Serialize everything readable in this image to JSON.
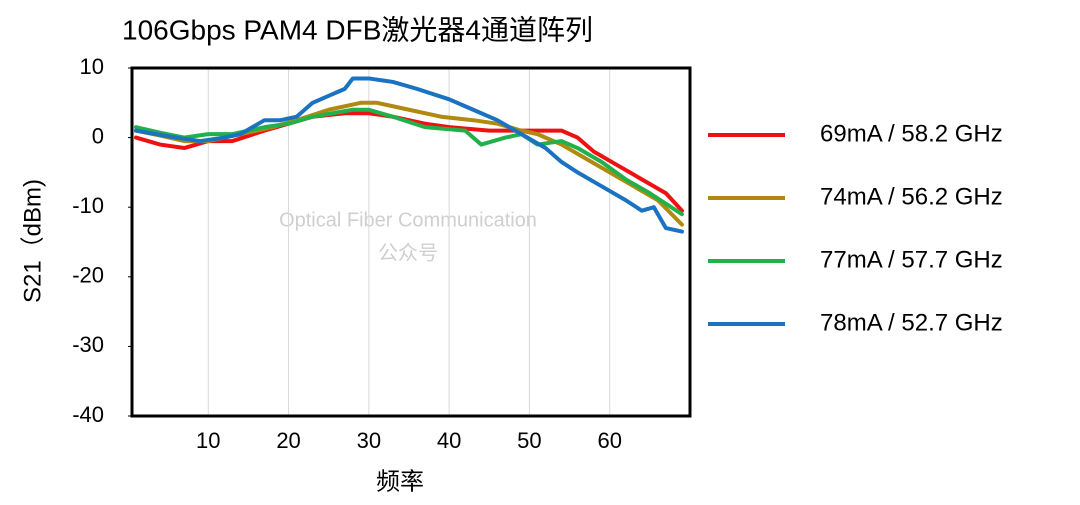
{
  "chart_data": {
    "type": "line",
    "title": "106Gbps PAM4 DFB激光器4通道阵列",
    "x_label": "频率",
    "y_label": "S21（dBm)",
    "annotations": [
      "Optical Fiber Communication",
      "公众号"
    ],
    "xlim": [
      0.5,
      70
    ],
    "xticks": [
      10,
      20,
      30,
      40,
      50,
      60
    ],
    "ylim": [
      -40,
      10
    ],
    "yticks": [
      -40,
      -30,
      -20,
      -10,
      0,
      10
    ],
    "grid": true,
    "series": [
      {
        "name": "69mA / 58.2 GHz",
        "color": "#ee1111",
        "x": [
          1,
          4,
          7,
          10,
          13,
          17,
          20,
          23,
          27,
          30,
          33,
          37,
          40,
          45,
          50,
          54,
          56,
          58,
          61,
          64,
          67,
          69
        ],
        "values": [
          0,
          -1,
          -1.5,
          -0.5,
          -0.5,
          1,
          2,
          3,
          3.5,
          3.5,
          3,
          2,
          1.5,
          1,
          1,
          1,
          0,
          -2,
          -4,
          -6,
          -8,
          -10.5
        ]
      },
      {
        "name": "74mA / 56.2 GHz",
        "color": "#b08a10",
        "x": [
          1,
          4,
          7,
          10,
          14,
          18,
          21,
          25,
          29,
          31,
          35,
          39,
          43,
          46,
          49,
          51,
          54,
          57,
          60,
          63,
          66,
          69
        ],
        "values": [
          1,
          0.3,
          -0.5,
          -0.5,
          0.5,
          1.5,
          2.5,
          4,
          5,
          5,
          4,
          3,
          2.5,
          2,
          1,
          0.5,
          -1,
          -3,
          -5,
          -7,
          -9,
          -12.5
        ]
      },
      {
        "name": "77mA / 57.7 GHz",
        "color": "#22b04a",
        "x": [
          1,
          4,
          7,
          10,
          13,
          17,
          20,
          23,
          28,
          30,
          33,
          37,
          42,
          44,
          47,
          49,
          51,
          54,
          56,
          59,
          62,
          65,
          69
        ],
        "values": [
          1.5,
          0.7,
          0,
          0.5,
          0.5,
          1.5,
          2,
          3,
          4,
          4,
          3,
          1.5,
          1,
          -1,
          0,
          0.5,
          -1,
          -0.5,
          -1.5,
          -3.5,
          -6,
          -8,
          -11
        ]
      },
      {
        "name": "78mA / 52.7 GHz",
        "color": "#1a72c0",
        "x": [
          1,
          6,
          9,
          12,
          14,
          17,
          19,
          21,
          23,
          25,
          27,
          28,
          30,
          33,
          36,
          40,
          43,
          46,
          49,
          52,
          54,
          56,
          59,
          62,
          64,
          65.5,
          67,
          69
        ],
        "values": [
          1,
          0,
          -0.5,
          0,
          0.5,
          2.5,
          2.5,
          3,
          5,
          6,
          7,
          8.5,
          8.5,
          8,
          7,
          5.5,
          4,
          2.5,
          0.5,
          -1.5,
          -3.5,
          -5,
          -7,
          -9,
          -10.5,
          -10,
          -13,
          -13.5
        ]
      }
    ]
  }
}
